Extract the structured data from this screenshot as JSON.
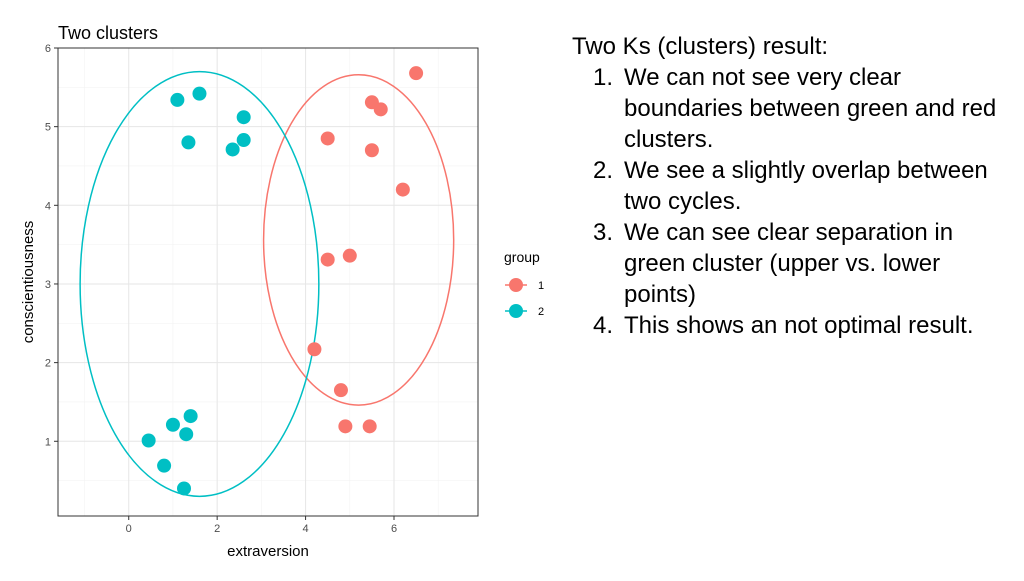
{
  "chart_data": {
    "type": "scatter",
    "title": "Two clusters",
    "xlabel": "extraversion",
    "ylabel": "conscientiousness",
    "xlim": [
      -1.6,
      7.9
    ],
    "ylim": [
      0.05,
      6.0
    ],
    "xticks": [
      0,
      2,
      4,
      6
    ],
    "yticks": [
      1,
      2,
      3,
      4,
      5,
      6
    ],
    "grid": true,
    "legend": {
      "title": "group",
      "position": "right"
    },
    "series": [
      {
        "name": "1",
        "color": "#F8766D",
        "points": [
          {
            "x": 6.5,
            "y": 5.68
          },
          {
            "x": 5.5,
            "y": 5.31
          },
          {
            "x": 5.7,
            "y": 5.22
          },
          {
            "x": 4.5,
            "y": 4.85
          },
          {
            "x": 5.5,
            "y": 4.7
          },
          {
            "x": 6.2,
            "y": 4.2
          },
          {
            "x": 5.0,
            "y": 3.36
          },
          {
            "x": 4.5,
            "y": 3.31
          },
          {
            "x": 4.2,
            "y": 2.17
          },
          {
            "x": 4.8,
            "y": 1.65
          },
          {
            "x": 4.9,
            "y": 1.19
          },
          {
            "x": 5.45,
            "y": 1.19
          }
        ]
      },
      {
        "name": "2",
        "color": "#00BFC4",
        "points": [
          {
            "x": 1.6,
            "y": 5.42
          },
          {
            "x": 1.1,
            "y": 5.34
          },
          {
            "x": 2.6,
            "y": 5.12
          },
          {
            "x": 2.6,
            "y": 4.83
          },
          {
            "x": 1.35,
            "y": 4.8
          },
          {
            "x": 2.35,
            "y": 4.71
          },
          {
            "x": 1.4,
            "y": 1.32
          },
          {
            "x": 1.0,
            "y": 1.21
          },
          {
            "x": 1.3,
            "y": 1.09
          },
          {
            "x": 0.45,
            "y": 1.01
          },
          {
            "x": 0.8,
            "y": 0.69
          },
          {
            "x": 1.25,
            "y": 0.4
          }
        ]
      }
    ],
    "ellipses": [
      {
        "group": "1",
        "color": "#F8766D",
        "cx": 5.2,
        "cy": 3.56,
        "rx": 2.15,
        "ry": 2.1
      },
      {
        "group": "2",
        "color": "#00BFC4",
        "cx": 1.6,
        "cy": 3.0,
        "rx": 2.7,
        "ry": 2.7
      }
    ]
  },
  "notes": {
    "heading": "Two Ks (clusters) result:",
    "items": [
      {
        "num": "1.",
        "text": "We can not see very clear boundaries between green and red clusters."
      },
      {
        "num": "2.",
        "text": "We see a slightly overlap between two cycles."
      },
      {
        "num": "3.",
        "text": "We can see clear separation in green cluster (upper vs. lower points)"
      },
      {
        "num": "4.",
        "text": "This shows an not optimal result."
      }
    ]
  }
}
